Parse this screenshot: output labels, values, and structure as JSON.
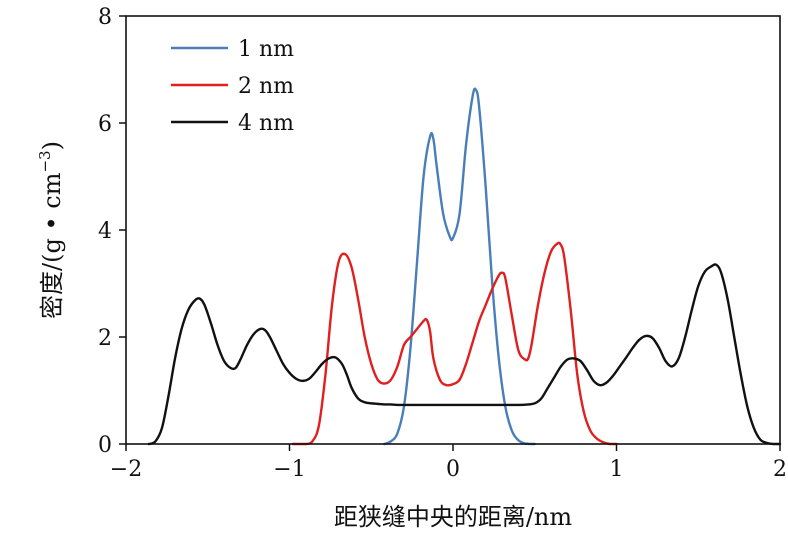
{
  "chart_data": {
    "type": "line",
    "title": "",
    "xlabel": "距狭缝中央的距离/nm",
    "ylabel": "密度/(g • cm",
    "ylabel_sup": "−3",
    "ylabel_close": ")",
    "xlim": [
      -2,
      2
    ],
    "ylim": [
      0,
      8
    ],
    "xticks": [
      "−2",
      "−1",
      "0",
      "1",
      "2"
    ],
    "xtick_values": [
      -2,
      -1,
      0,
      1,
      2
    ],
    "yticks": [
      "0",
      "2",
      "4",
      "6",
      "8"
    ],
    "ytick_values": [
      0,
      2,
      4,
      6,
      8
    ],
    "grid": false,
    "legend_position": "top-left",
    "series": [
      {
        "name": "1 nm",
        "color": "#4a7ebb",
        "x": [
          -0.42,
          -0.38,
          -0.34,
          -0.3,
          -0.26,
          -0.22,
          -0.18,
          -0.14,
          -0.12,
          -0.1,
          -0.06,
          -0.02,
          0.0,
          0.04,
          0.08,
          0.12,
          0.14,
          0.16,
          0.2,
          0.24,
          0.28,
          0.32,
          0.36,
          0.4,
          0.44,
          0.48,
          0.5
        ],
        "y": [
          0.0,
          0.05,
          0.2,
          0.7,
          1.8,
          3.4,
          5.0,
          5.75,
          5.7,
          5.2,
          4.3,
          3.88,
          3.85,
          4.3,
          5.6,
          6.5,
          6.62,
          6.3,
          4.8,
          3.0,
          1.6,
          0.7,
          0.25,
          0.07,
          0.01,
          0.0,
          0.0
        ]
      },
      {
        "name": "2 nm",
        "color": "#e02020",
        "x": [
          -0.98,
          -0.9,
          -0.86,
          -0.82,
          -0.78,
          -0.74,
          -0.7,
          -0.66,
          -0.62,
          -0.58,
          -0.54,
          -0.5,
          -0.46,
          -0.42,
          -0.38,
          -0.34,
          -0.3,
          -0.26,
          -0.22,
          -0.18,
          -0.16,
          -0.14,
          -0.12,
          -0.08,
          -0.04,
          0.0,
          0.04,
          0.08,
          0.12,
          0.16,
          0.2,
          0.24,
          0.28,
          0.3,
          0.32,
          0.36,
          0.4,
          0.44,
          0.46,
          0.48,
          0.52,
          0.56,
          0.6,
          0.64,
          0.66,
          0.68,
          0.72,
          0.76,
          0.8,
          0.84,
          0.88,
          0.92,
          0.96,
          1.0
        ],
        "y": [
          0.0,
          0.0,
          0.05,
          0.35,
          1.3,
          2.6,
          3.4,
          3.55,
          3.3,
          2.7,
          2.0,
          1.5,
          1.2,
          1.13,
          1.2,
          1.45,
          1.85,
          2.0,
          2.15,
          2.3,
          2.32,
          2.1,
          1.6,
          1.2,
          1.1,
          1.12,
          1.2,
          1.5,
          1.9,
          2.3,
          2.6,
          2.9,
          3.15,
          3.2,
          3.1,
          2.4,
          1.75,
          1.58,
          1.6,
          1.85,
          2.6,
          3.2,
          3.6,
          3.75,
          3.72,
          3.5,
          2.5,
          1.3,
          0.6,
          0.25,
          0.1,
          0.03,
          0.0,
          0.0
        ]
      },
      {
        "name": "4 nm",
        "color": "#111111",
        "x": [
          -1.86,
          -1.82,
          -1.78,
          -1.74,
          -1.7,
          -1.66,
          -1.62,
          -1.58,
          -1.55,
          -1.52,
          -1.48,
          -1.44,
          -1.4,
          -1.36,
          -1.33,
          -1.3,
          -1.26,
          -1.22,
          -1.18,
          -1.15,
          -1.12,
          -1.08,
          -1.04,
          -1.0,
          -0.96,
          -0.92,
          -0.88,
          -0.84,
          -0.8,
          -0.76,
          -0.72,
          -0.68,
          -0.65,
          -0.62,
          -0.58,
          -0.54,
          -0.5,
          -0.46,
          -0.42,
          -0.38,
          -0.34,
          -0.3,
          0.0,
          0.3,
          0.4,
          0.46,
          0.5,
          0.54,
          0.58,
          0.62,
          0.66,
          0.7,
          0.74,
          0.78,
          0.82,
          0.86,
          0.9,
          0.94,
          0.98,
          1.02,
          1.06,
          1.1,
          1.14,
          1.18,
          1.22,
          1.26,
          1.3,
          1.34,
          1.38,
          1.42,
          1.46,
          1.5,
          1.54,
          1.58,
          1.61,
          1.64,
          1.68,
          1.72,
          1.76,
          1.8,
          1.84,
          1.88,
          1.92,
          1.96,
          2.0
        ],
        "y": [
          0.0,
          0.05,
          0.3,
          0.9,
          1.6,
          2.15,
          2.5,
          2.68,
          2.72,
          2.6,
          2.25,
          1.85,
          1.55,
          1.42,
          1.42,
          1.58,
          1.85,
          2.05,
          2.15,
          2.13,
          2.0,
          1.75,
          1.5,
          1.33,
          1.22,
          1.18,
          1.22,
          1.35,
          1.5,
          1.6,
          1.62,
          1.5,
          1.3,
          1.05,
          0.85,
          0.78,
          0.76,
          0.75,
          0.74,
          0.74,
          0.73,
          0.73,
          0.73,
          0.73,
          0.73,
          0.74,
          0.76,
          0.85,
          1.05,
          1.25,
          1.45,
          1.58,
          1.6,
          1.55,
          1.38,
          1.18,
          1.1,
          1.15,
          1.28,
          1.45,
          1.62,
          1.8,
          1.95,
          2.02,
          1.98,
          1.8,
          1.55,
          1.45,
          1.6,
          2.0,
          2.5,
          2.95,
          3.22,
          3.32,
          3.35,
          3.2,
          2.7,
          2.0,
          1.3,
          0.7,
          0.3,
          0.08,
          0.02,
          0.0,
          0.0
        ]
      }
    ]
  }
}
